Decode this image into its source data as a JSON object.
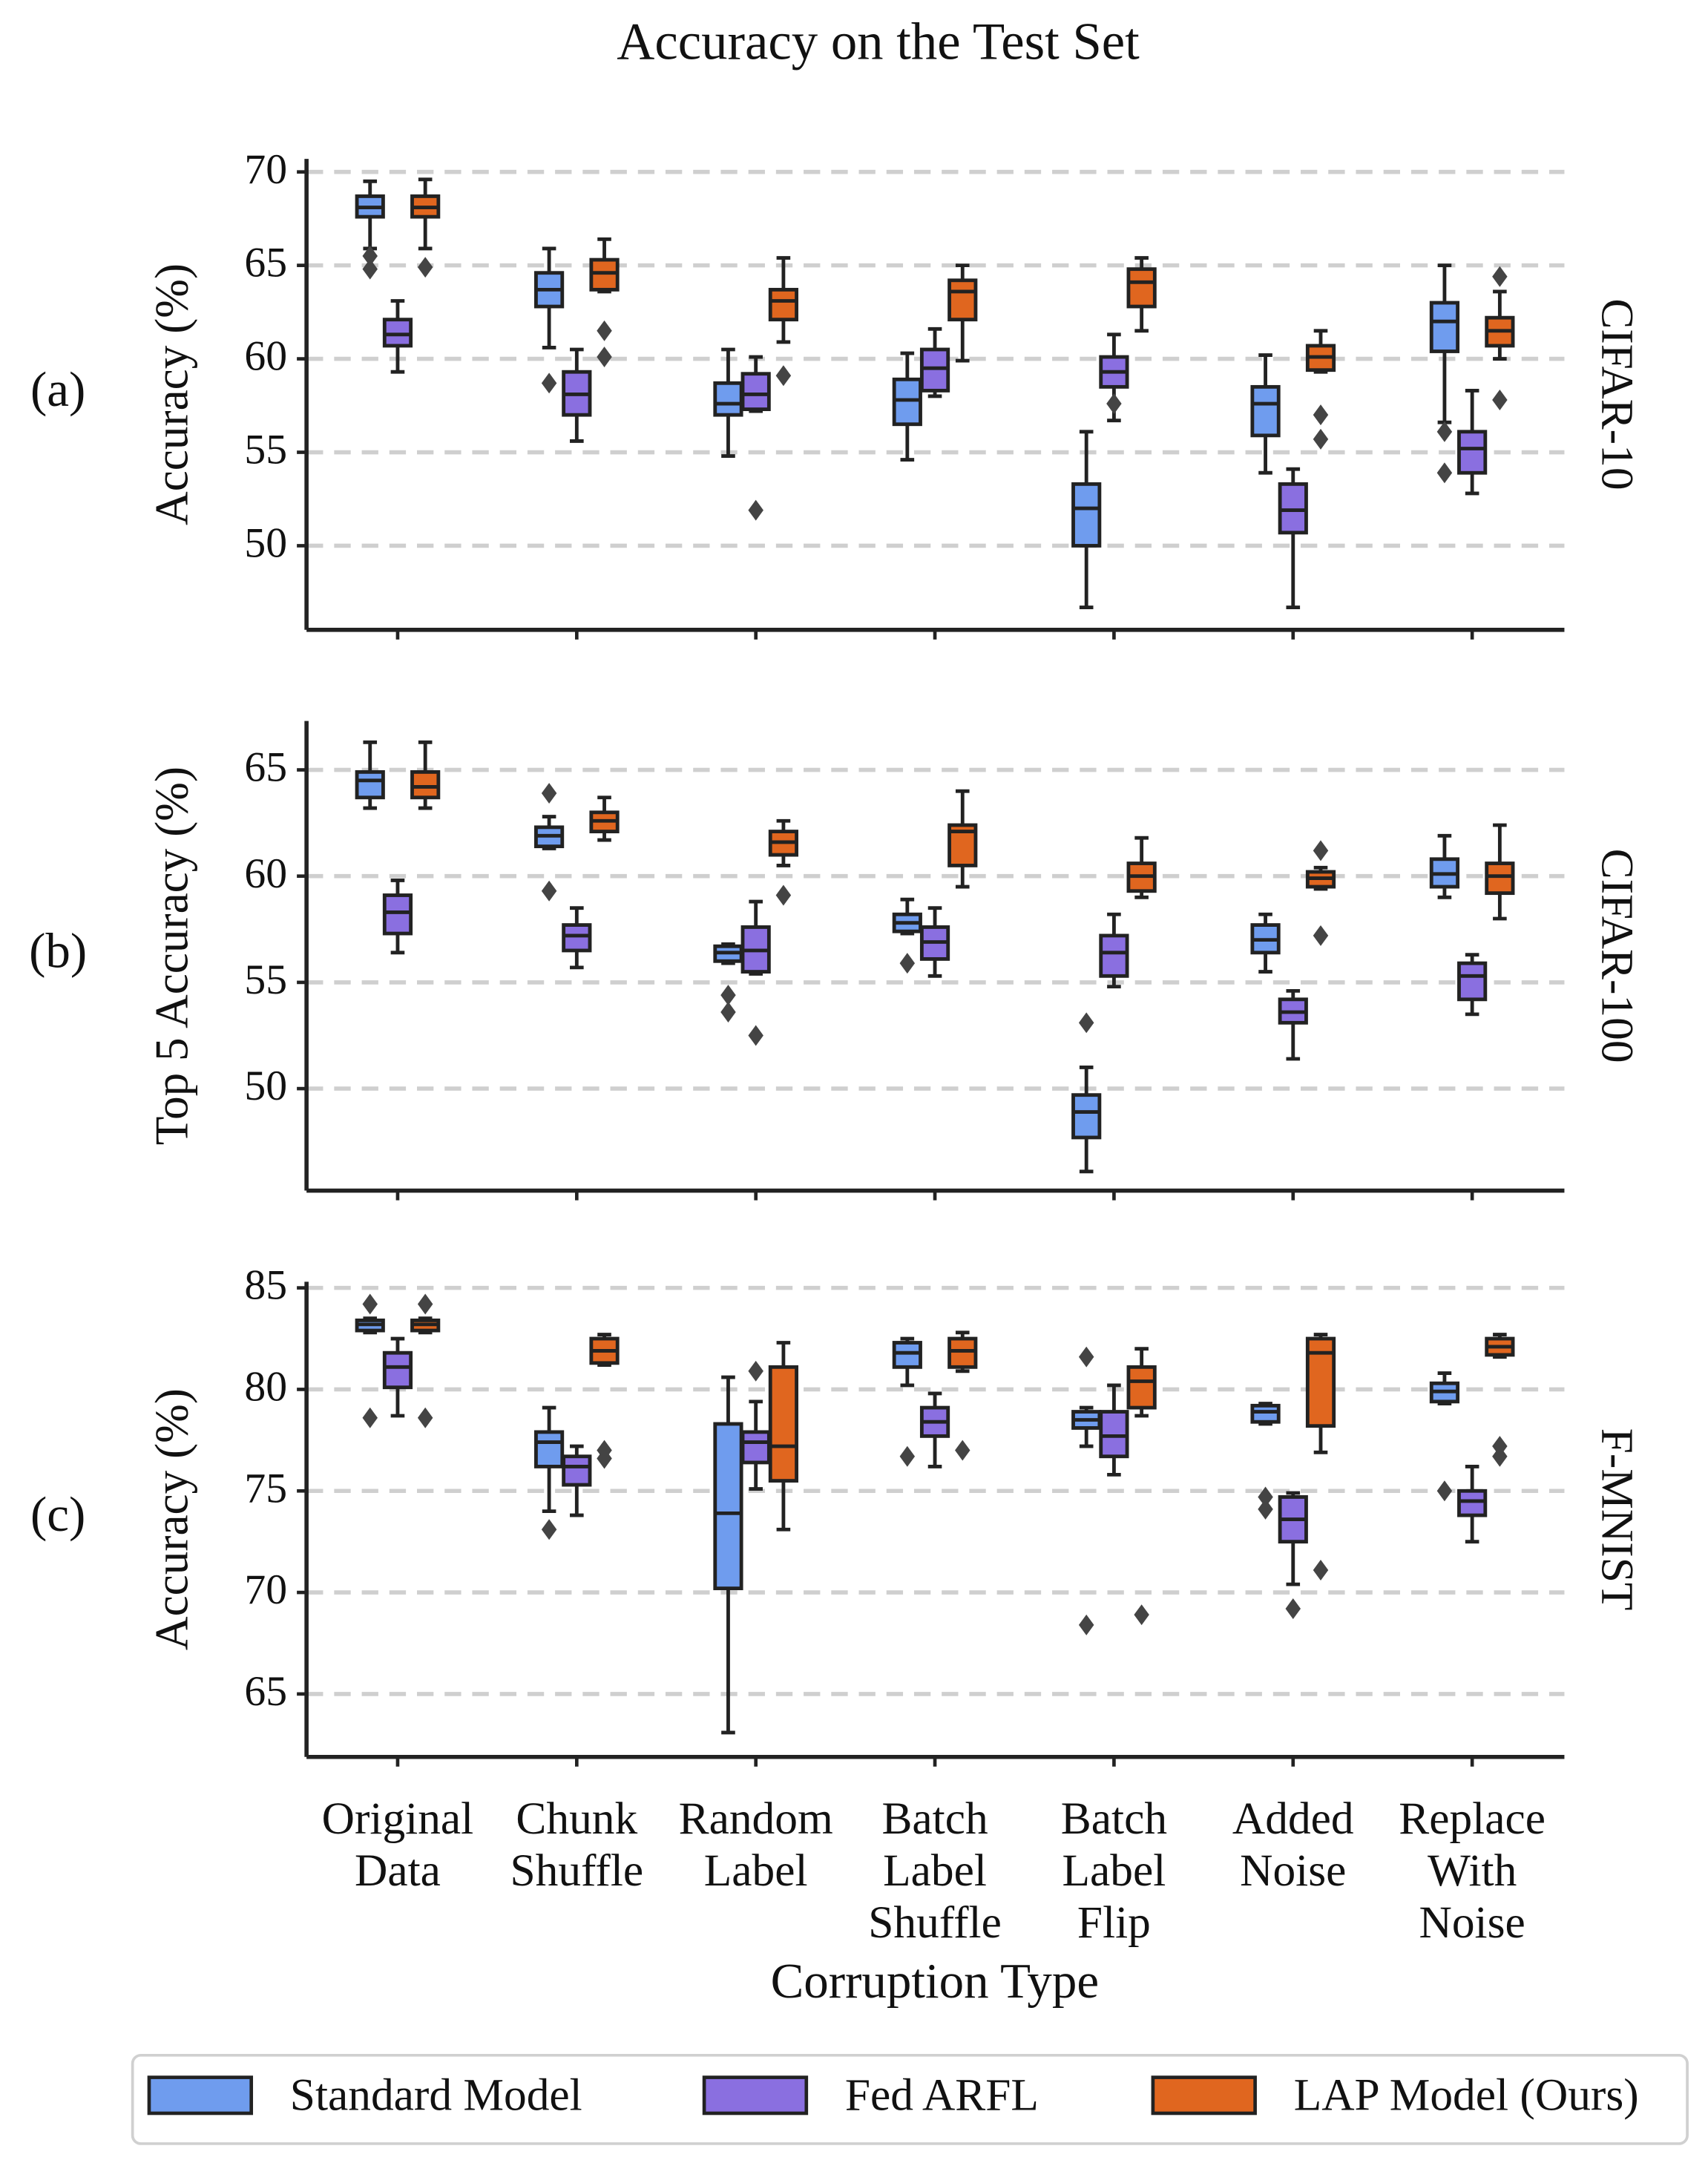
{
  "chart_data": [
    {
      "type": "box",
      "title": "Accuracy on the Test Set",
      "panel_label": "(a)",
      "side_label": "CIFAR-10",
      "ylabel": "Accuracy (%)",
      "ylim": [
        45.5,
        70.7
      ],
      "yticks": [
        50,
        55,
        60,
        65,
        70
      ],
      "grid": true,
      "series": [
        {
          "name": "Standard Model",
          "color": "#6f9cee",
          "boxes": [
            {
              "whislo": 65.9,
              "q1": 67.6,
              "med": 68.1,
              "q3": 68.7,
              "whishi": 69.5,
              "fliers": [
                65.5,
                64.8
              ]
            },
            {
              "whislo": 60.6,
              "q1": 62.8,
              "med": 63.7,
              "q3": 64.6,
              "whishi": 65.9,
              "fliers": [
                58.7
              ]
            },
            {
              "whislo": 54.8,
              "q1": 57.0,
              "med": 57.6,
              "q3": 58.7,
              "whishi": 60.5
            },
            {
              "whislo": 54.6,
              "q1": 56.5,
              "med": 57.8,
              "q3": 58.9,
              "whishi": 60.3
            },
            {
              "whislo": 46.7,
              "q1": 50.0,
              "med": 52.0,
              "q3": 53.3,
              "whishi": 56.1
            },
            {
              "whislo": 53.9,
              "q1": 55.9,
              "med": 57.6,
              "q3": 58.5,
              "whishi": 60.2
            },
            {
              "whislo": 56.6,
              "q1": 60.4,
              "med": 62.0,
              "q3": 63.0,
              "whishi": 65.0,
              "fliers": [
                56.1,
                53.9
              ]
            }
          ]
        },
        {
          "name": "Fed ARFL",
          "color": "#8a6fe0",
          "boxes": [
            {
              "whislo": 59.3,
              "q1": 60.7,
              "med": 61.3,
              "q3": 62.1,
              "whishi": 63.1
            },
            {
              "whislo": 55.6,
              "q1": 57.0,
              "med": 58.1,
              "q3": 59.3,
              "whishi": 60.5
            },
            {
              "whislo": 57.2,
              "q1": 57.3,
              "med": 58.1,
              "q3": 59.2,
              "whishi": 60.1,
              "fliers": [
                51.9
              ]
            },
            {
              "whislo": 58.0,
              "q1": 58.3,
              "med": 59.5,
              "q3": 60.5,
              "whishi": 61.6
            },
            {
              "whislo": 56.7,
              "q1": 58.5,
              "med": 59.3,
              "q3": 60.1,
              "whishi": 61.3,
              "fliers": [
                57.6
              ]
            },
            {
              "whislo": 46.7,
              "q1": 50.7,
              "med": 51.9,
              "q3": 53.3,
              "whishi": 54.1
            },
            {
              "whislo": 52.8,
              "q1": 53.9,
              "med": 55.2,
              "q3": 56.1,
              "whishi": 58.3
            }
          ]
        },
        {
          "name": "LAP Model (Ours)",
          "color": "#e0661f",
          "boxes": [
            {
              "whislo": 65.9,
              "q1": 67.6,
              "med": 68.1,
              "q3": 68.7,
              "whishi": 69.6,
              "fliers": [
                64.9
              ]
            },
            {
              "whislo": 63.6,
              "q1": 63.7,
              "med": 64.6,
              "q3": 65.3,
              "whishi": 66.4,
              "fliers": [
                61.5,
                60.1
              ]
            },
            {
              "whislo": 60.9,
              "q1": 62.1,
              "med": 63.1,
              "q3": 63.7,
              "whishi": 65.4,
              "fliers": [
                59.1
              ]
            },
            {
              "whislo": 59.9,
              "q1": 62.1,
              "med": 63.6,
              "q3": 64.2,
              "whishi": 65.0
            },
            {
              "whislo": 61.5,
              "q1": 62.8,
              "med": 64.1,
              "q3": 64.8,
              "whishi": 65.4
            },
            {
              "whislo": 59.3,
              "q1": 59.4,
              "med": 60.1,
              "q3": 60.7,
              "whishi": 61.5,
              "fliers": [
                57.0,
                55.7
              ]
            },
            {
              "whislo": 60.0,
              "q1": 60.7,
              "med": 61.5,
              "q3": 62.2,
              "whishi": 63.6,
              "fliers": [
                64.4,
                57.8
              ]
            }
          ]
        }
      ]
    },
    {
      "type": "box",
      "panel_label": "(b)",
      "side_label": "CIFAR-100",
      "ylabel": "Top 5 Accuracy (%)",
      "ylim": [
        45.2,
        67.3
      ],
      "yticks": [
        50,
        55,
        60,
        65
      ],
      "grid": true,
      "series": [
        {
          "boxes": [
            {
              "whislo": 63.2,
              "q1": 63.7,
              "med": 64.5,
              "q3": 64.9,
              "whishi": 66.3
            },
            {
              "whislo": 61.3,
              "q1": 61.4,
              "med": 61.9,
              "q3": 62.3,
              "whishi": 62.8,
              "fliers": [
                63.9,
                59.3
              ]
            },
            {
              "whislo": 55.9,
              "q1": 56.0,
              "med": 56.4,
              "q3": 56.7,
              "whishi": 56.8,
              "fliers": [
                54.4,
                53.6
              ]
            },
            {
              "whislo": 57.3,
              "q1": 57.4,
              "med": 57.8,
              "q3": 58.2,
              "whishi": 58.9,
              "fliers": [
                55.9
              ]
            },
            {
              "whislo": 46.1,
              "q1": 47.7,
              "med": 48.9,
              "q3": 49.7,
              "whishi": 51.0,
              "fliers": [
                53.1
              ]
            },
            {
              "whislo": 55.5,
              "q1": 56.4,
              "med": 57.0,
              "q3": 57.7,
              "whishi": 58.2
            },
            {
              "whislo": 59.0,
              "q1": 59.5,
              "med": 60.1,
              "q3": 60.8,
              "whishi": 61.9
            }
          ]
        },
        {
          "boxes": [
            {
              "whislo": 56.4,
              "q1": 57.3,
              "med": 58.3,
              "q3": 59.1,
              "whishi": 59.8
            },
            {
              "whislo": 55.7,
              "q1": 56.5,
              "med": 57.2,
              "q3": 57.7,
              "whishi": 58.5
            },
            {
              "whislo": 55.4,
              "q1": 55.5,
              "med": 56.5,
              "q3": 57.6,
              "whishi": 58.8,
              "fliers": [
                52.5
              ]
            },
            {
              "whislo": 55.3,
              "q1": 56.1,
              "med": 56.9,
              "q3": 57.6,
              "whishi": 58.5
            },
            {
              "whislo": 54.8,
              "q1": 55.3,
              "med": 56.4,
              "q3": 57.2,
              "whishi": 58.2
            },
            {
              "whislo": 51.4,
              "q1": 53.1,
              "med": 53.6,
              "q3": 54.2,
              "whishi": 54.6
            },
            {
              "whislo": 53.5,
              "q1": 54.2,
              "med": 55.3,
              "q3": 55.9,
              "whishi": 56.3
            }
          ]
        },
        {
          "boxes": [
            {
              "whislo": 63.2,
              "q1": 63.7,
              "med": 64.2,
              "q3": 64.9,
              "whishi": 66.3
            },
            {
              "whislo": 61.7,
              "q1": 62.1,
              "med": 62.6,
              "q3": 63.0,
              "whishi": 63.7
            },
            {
              "whislo": 60.5,
              "q1": 61.0,
              "med": 61.6,
              "q3": 62.1,
              "whishi": 62.6,
              "fliers": [
                59.1
              ]
            },
            {
              "whislo": 59.5,
              "q1": 60.5,
              "med": 62.1,
              "q3": 62.4,
              "whishi": 64.0
            },
            {
              "whislo": 59.0,
              "q1": 59.3,
              "med": 60.0,
              "q3": 60.6,
              "whishi": 61.8
            },
            {
              "whislo": 59.4,
              "q1": 59.5,
              "med": 59.9,
              "q3": 60.2,
              "whishi": 60.4,
              "fliers": [
                61.2,
                57.2
              ]
            },
            {
              "whislo": 58.0,
              "q1": 59.2,
              "med": 60.0,
              "q3": 60.6,
              "whishi": 62.4
            }
          ]
        }
      ]
    },
    {
      "type": "box",
      "panel_label": "(c)",
      "side_label": "F-MNIST",
      "ylabel": "Accuracy (%)",
      "xlabel": "Corruption Type",
      "categories": [
        [
          "Original",
          "Data"
        ],
        [
          "Chunk",
          "Shuffle"
        ],
        [
          "Random",
          "Label"
        ],
        [
          "Batch",
          "Label",
          "Shuffle"
        ],
        [
          "Batch",
          "Label",
          "Flip"
        ],
        [
          "Added",
          "Noise"
        ],
        [
          "Replace",
          "With",
          "Noise"
        ]
      ],
      "ylim": [
        61.9,
        85.3
      ],
      "yticks": [
        65,
        70,
        75,
        80,
        85
      ],
      "grid": true,
      "series": [
        {
          "boxes": [
            {
              "whislo": 82.8,
              "q1": 82.9,
              "med": 83.2,
              "q3": 83.4,
              "whishi": 83.5,
              "fliers": [
                84.2,
                78.6
              ]
            },
            {
              "whislo": 74.0,
              "q1": 76.2,
              "med": 77.4,
              "q3": 77.9,
              "whishi": 79.1,
              "fliers": [
                73.1
              ]
            },
            {
              "whislo": 63.1,
              "q1": 70.2,
              "med": 73.9,
              "q3": 78.3,
              "whishi": 80.6
            },
            {
              "whislo": 80.2,
              "q1": 81.1,
              "med": 81.8,
              "q3": 82.3,
              "whishi": 82.5,
              "fliers": [
                76.7
              ]
            },
            {
              "whislo": 77.2,
              "q1": 78.1,
              "med": 78.5,
              "q3": 78.9,
              "whishi": 79.1,
              "fliers": [
                81.6,
                68.4
              ]
            },
            {
              "whislo": 78.3,
              "q1": 78.4,
              "med": 78.9,
              "q3": 79.2,
              "whishi": 79.3,
              "fliers": [
                74.7,
                74.1
              ]
            },
            {
              "whislo": 79.3,
              "q1": 79.4,
              "med": 79.9,
              "q3": 80.3,
              "whishi": 80.8,
              "fliers": [
                75.0
              ]
            }
          ]
        },
        {
          "boxes": [
            {
              "whislo": 78.7,
              "q1": 80.1,
              "med": 81.1,
              "q3": 81.8,
              "whishi": 82.5
            },
            {
              "whislo": 73.8,
              "q1": 75.3,
              "med": 76.2,
              "q3": 76.7,
              "whishi": 77.2
            },
            {
              "whislo": 75.1,
              "q1": 76.4,
              "med": 77.4,
              "q3": 77.9,
              "whishi": 79.4,
              "fliers": [
                80.9
              ]
            },
            {
              "whislo": 76.2,
              "q1": 77.7,
              "med": 78.4,
              "q3": 79.1,
              "whishi": 79.8
            },
            {
              "whislo": 75.8,
              "q1": 76.7,
              "med": 77.7,
              "q3": 78.9,
              "whishi": 80.2
            },
            {
              "whislo": 70.4,
              "q1": 72.5,
              "med": 73.6,
              "q3": 74.7,
              "whishi": 74.9,
              "fliers": [
                69.2
              ]
            },
            {
              "whislo": 72.5,
              "q1": 73.8,
              "med": 74.5,
              "q3": 75.0,
              "whishi": 76.2
            }
          ]
        },
        {
          "boxes": [
            {
              "whislo": 82.8,
              "q1": 82.9,
              "med": 83.2,
              "q3": 83.4,
              "whishi": 83.5,
              "fliers": [
                84.2,
                78.6
              ]
            },
            {
              "whislo": 81.2,
              "q1": 81.3,
              "med": 81.9,
              "q3": 82.5,
              "whishi": 82.7,
              "fliers": [
                77.0,
                76.6
              ]
            },
            {
              "whislo": 73.1,
              "q1": 75.5,
              "med": 77.2,
              "q3": 81.1,
              "whishi": 82.3
            },
            {
              "whislo": 80.9,
              "q1": 81.1,
              "med": 81.9,
              "q3": 82.5,
              "whishi": 82.8,
              "fliers": [
                77.0
              ]
            },
            {
              "whislo": 78.7,
              "q1": 79.1,
              "med": 80.4,
              "q3": 81.1,
              "whishi": 82.0,
              "fliers": [
                68.9
              ]
            },
            {
              "whislo": 76.9,
              "q1": 78.2,
              "med": 81.8,
              "q3": 82.5,
              "whishi": 82.7,
              "fliers": [
                71.1
              ]
            },
            {
              "whislo": 81.6,
              "q1": 81.7,
              "med": 82.1,
              "q3": 82.5,
              "whishi": 82.7,
              "fliers": [
                77.2,
                76.7
              ]
            }
          ]
        }
      ]
    }
  ]
}
